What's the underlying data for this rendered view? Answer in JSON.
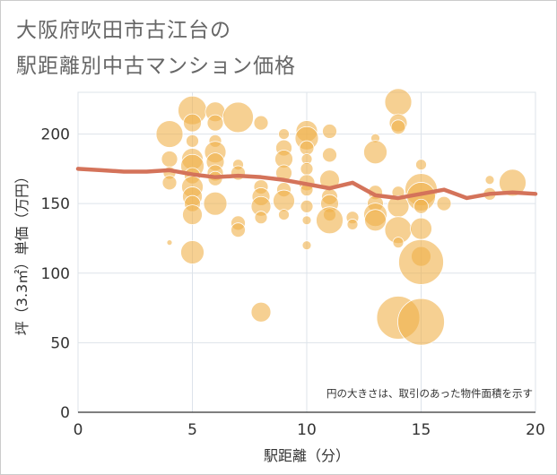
{
  "title": {
    "line1": "大阪府吹田市古江台の",
    "line2": "駅距離別中古マンション価格"
  },
  "colors": {
    "bubble": "#f0b04a",
    "line": "#d4735a",
    "grid": "#dde3ea",
    "axis": "#333333"
  },
  "chart_data": {
    "type": "scatter",
    "xlabel": "駅距離（分）",
    "ylabel": "坪（3.3㎡）単価（万円）",
    "xlim": [
      0,
      20
    ],
    "ylim": [
      0,
      230
    ],
    "xticks": [
      0,
      5,
      10,
      15,
      20
    ],
    "yticks": [
      0,
      50,
      100,
      150,
      200
    ],
    "grid": true,
    "note": "円の大きさは、取引のあった物件面積を示す",
    "trend_line": {
      "x": [
        0,
        1,
        2,
        3,
        4,
        5,
        6,
        7,
        8,
        9,
        10,
        11,
        12,
        13,
        14,
        15,
        16,
        17,
        18,
        19,
        20
      ],
      "y": [
        175,
        174,
        173,
        173,
        174,
        171,
        169,
        170,
        169,
        167,
        164,
        161,
        165,
        156,
        154,
        157,
        160,
        154,
        157,
        158,
        157
      ]
    },
    "points": [
      {
        "x": 4,
        "y": 200,
        "s": 15
      },
      {
        "x": 4,
        "y": 182,
        "s": 9
      },
      {
        "x": 4,
        "y": 172,
        "s": 7
      },
      {
        "x": 4,
        "y": 165,
        "s": 8
      },
      {
        "x": 4,
        "y": 122,
        "s": 3
      },
      {
        "x": 5,
        "y": 217,
        "s": 16
      },
      {
        "x": 5,
        "y": 208,
        "s": 10
      },
      {
        "x": 5,
        "y": 195,
        "s": 7
      },
      {
        "x": 5,
        "y": 182,
        "s": 12
      },
      {
        "x": 5,
        "y": 177,
        "s": 13
      },
      {
        "x": 5,
        "y": 170,
        "s": 9
      },
      {
        "x": 5,
        "y": 162,
        "s": 12
      },
      {
        "x": 5,
        "y": 155,
        "s": 11
      },
      {
        "x": 5,
        "y": 150,
        "s": 9
      },
      {
        "x": 5,
        "y": 142,
        "s": 11
      },
      {
        "x": 5,
        "y": 115,
        "s": 13
      },
      {
        "x": 6,
        "y": 216,
        "s": 11
      },
      {
        "x": 6,
        "y": 208,
        "s": 9
      },
      {
        "x": 6,
        "y": 195,
        "s": 7
      },
      {
        "x": 6,
        "y": 187,
        "s": 12
      },
      {
        "x": 6,
        "y": 180,
        "s": 10
      },
      {
        "x": 6,
        "y": 172,
        "s": 9
      },
      {
        "x": 6,
        "y": 168,
        "s": 8
      },
      {
        "x": 6,
        "y": 150,
        "s": 13
      },
      {
        "x": 7,
        "y": 212,
        "s": 17
      },
      {
        "x": 7,
        "y": 178,
        "s": 6
      },
      {
        "x": 7,
        "y": 172,
        "s": 8
      },
      {
        "x": 7,
        "y": 136,
        "s": 8
      },
      {
        "x": 7,
        "y": 131,
        "s": 8
      },
      {
        "x": 8,
        "y": 208,
        "s": 8
      },
      {
        "x": 8,
        "y": 162,
        "s": 8
      },
      {
        "x": 8,
        "y": 155,
        "s": 10
      },
      {
        "x": 8,
        "y": 148,
        "s": 11
      },
      {
        "x": 8,
        "y": 140,
        "s": 7
      },
      {
        "x": 8,
        "y": 72,
        "s": 11
      },
      {
        "x": 9,
        "y": 200,
        "s": 6
      },
      {
        "x": 9,
        "y": 190,
        "s": 9
      },
      {
        "x": 9,
        "y": 182,
        "s": 10
      },
      {
        "x": 9,
        "y": 172,
        "s": 9
      },
      {
        "x": 9,
        "y": 160,
        "s": 8
      },
      {
        "x": 9,
        "y": 152,
        "s": 12
      },
      {
        "x": 9,
        "y": 142,
        "s": 6
      },
      {
        "x": 10,
        "y": 202,
        "s": 12
      },
      {
        "x": 10,
        "y": 197,
        "s": 13
      },
      {
        "x": 10,
        "y": 190,
        "s": 8
      },
      {
        "x": 10,
        "y": 182,
        "s": 6
      },
      {
        "x": 10,
        "y": 175,
        "s": 7
      },
      {
        "x": 10,
        "y": 165,
        "s": 9
      },
      {
        "x": 10,
        "y": 160,
        "s": 7
      },
      {
        "x": 10,
        "y": 148,
        "s": 7
      },
      {
        "x": 10,
        "y": 138,
        "s": 5
      },
      {
        "x": 10,
        "y": 120,
        "s": 5
      },
      {
        "x": 11,
        "y": 202,
        "s": 8
      },
      {
        "x": 11,
        "y": 185,
        "s": 8
      },
      {
        "x": 11,
        "y": 167,
        "s": 11
      },
      {
        "x": 11,
        "y": 155,
        "s": 9
      },
      {
        "x": 11,
        "y": 150,
        "s": 10
      },
      {
        "x": 11,
        "y": 142,
        "s": 7
      },
      {
        "x": 11,
        "y": 138,
        "s": 15
      },
      {
        "x": 12,
        "y": 140,
        "s": 7
      },
      {
        "x": 12,
        "y": 135,
        "s": 6
      },
      {
        "x": 13,
        "y": 197,
        "s": 5
      },
      {
        "x": 13,
        "y": 187,
        "s": 13
      },
      {
        "x": 13,
        "y": 158,
        "s": 8
      },
      {
        "x": 13,
        "y": 150,
        "s": 9
      },
      {
        "x": 13,
        "y": 142,
        "s": 13
      },
      {
        "x": 13,
        "y": 138,
        "s": 12
      },
      {
        "x": 14,
        "y": 223,
        "s": 15
      },
      {
        "x": 14,
        "y": 208,
        "s": 10
      },
      {
        "x": 14,
        "y": 205,
        "s": 8
      },
      {
        "x": 14,
        "y": 158,
        "s": 7
      },
      {
        "x": 14,
        "y": 148,
        "s": 12
      },
      {
        "x": 14,
        "y": 131,
        "s": 15
      },
      {
        "x": 14,
        "y": 122,
        "s": 6
      },
      {
        "x": 14,
        "y": 68,
        "s": 24
      },
      {
        "x": 15,
        "y": 178,
        "s": 6
      },
      {
        "x": 15,
        "y": 160,
        "s": 18
      },
      {
        "x": 15,
        "y": 155,
        "s": 16
      },
      {
        "x": 15,
        "y": 148,
        "s": 8
      },
      {
        "x": 15,
        "y": 132,
        "s": 12
      },
      {
        "x": 15,
        "y": 112,
        "s": 11
      },
      {
        "x": 15,
        "y": 108,
        "s": 25
      },
      {
        "x": 15,
        "y": 65,
        "s": 26
      },
      {
        "x": 16,
        "y": 150,
        "s": 8
      },
      {
        "x": 18,
        "y": 167,
        "s": 5
      },
      {
        "x": 18,
        "y": 157,
        "s": 7
      },
      {
        "x": 19,
        "y": 165,
        "s": 15
      }
    ]
  }
}
